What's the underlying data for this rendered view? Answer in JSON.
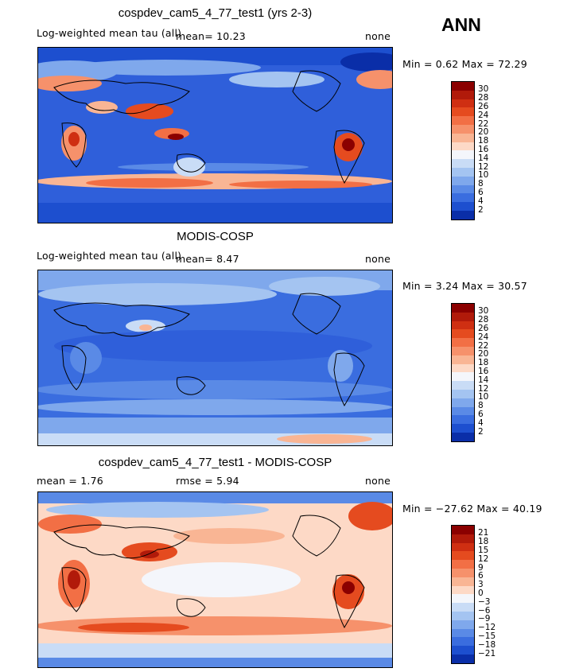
{
  "season": "ANN",
  "panels": [
    {
      "title": "cospdev_cam5_4_77_test1 (yrs 2-3)",
      "left_label": "Log-weighted mean tau (all)",
      "mean_text": "mean=   10.23",
      "right_label": "none",
      "minmax": "Min =    0.62 Max =   72.29",
      "colorbar_labels": [
        "30",
        "28",
        "26",
        "24",
        "22",
        "20",
        "18",
        "16",
        "14",
        "12",
        "10",
        "8",
        "6",
        "4",
        "2"
      ]
    },
    {
      "title": "MODIS-COSP",
      "left_label": "Log-weighted mean tau (all)",
      "mean_text": "mean=    8.47",
      "right_label": "none",
      "minmax": "Min =    3.24 Max =   30.57",
      "colorbar_labels": [
        "30",
        "28",
        "26",
        "24",
        "22",
        "20",
        "18",
        "16",
        "14",
        "12",
        "10",
        "8",
        "6",
        "4",
        "2"
      ]
    },
    {
      "title": "cospdev_cam5_4_77_test1 - MODIS-COSP",
      "left_label": "mean =    1.76",
      "mean_text": "rmse =    5.94",
      "right_label": "none",
      "minmax": "Min = −27.62 Max =   40.19",
      "colorbar_labels": [
        "21",
        "18",
        "15",
        "12",
        "9",
        "6",
        "3",
        "0",
        "−3",
        "−6",
        "−9",
        "−12",
        "−15",
        "−18",
        "−21"
      ]
    }
  ],
  "colors": {
    "abs_scale": [
      "#8b0000",
      "#b11a0a",
      "#cf2f12",
      "#e54b1f",
      "#f26f45",
      "#f6916b",
      "#f9b594",
      "#fdd9c6",
      "#f4f6fb",
      "#c9dcf6",
      "#a4c4f1",
      "#7fa8ec",
      "#5a8ae6",
      "#3a6ddf",
      "#1d4fcf",
      "#0a2ea8"
    ],
    "diff_scale": [
      "#8b0000",
      "#b11a0a",
      "#cf2f12",
      "#e54b1f",
      "#f26f45",
      "#f6916b",
      "#f9b594",
      "#fdd9c6",
      "#f4f6fb",
      "#c9dcf6",
      "#a4c4f1",
      "#7fa8ec",
      "#5a8ae6",
      "#3a6ddf",
      "#1d4fcf",
      "#0a2ea8"
    ]
  }
}
